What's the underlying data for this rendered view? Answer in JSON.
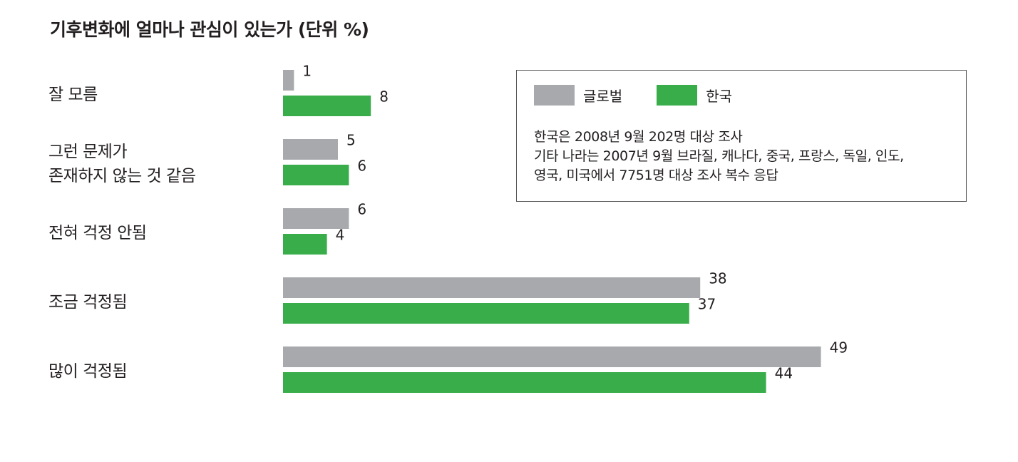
{
  "chart_data": {
    "type": "bar",
    "orientation": "horizontal",
    "title": "기후변화에 얼마나 관심이 있는가 (단위 %)",
    "categories": [
      [
        "잘 모름"
      ],
      [
        "그런 문제가",
        "존재하지 않는 것 같음"
      ],
      [
        "전혀 걱정 안됨"
      ],
      [
        "조금 걱정됨"
      ],
      [
        "많이 걱정됨"
      ]
    ],
    "series": [
      {
        "name": "글로벌",
        "color": "#a7a9ac",
        "values": [
          1,
          5,
          6,
          38,
          49
        ]
      },
      {
        "name": "한국",
        "color": "#39ad4a",
        "values": [
          8,
          6,
          4,
          37,
          44
        ]
      }
    ],
    "xlim": [
      0,
      50
    ],
    "grid": false,
    "legend": "top-right"
  },
  "legend_note": [
    "한국은 2008년 9월 202명 대상 조사",
    "기타 나라는 2007년 9월 브라질, 캐나다, 중국, 프랑스, 독일, 인도,",
    "영국, 미국에서 7751명 대상 조사 복수 응답"
  ]
}
